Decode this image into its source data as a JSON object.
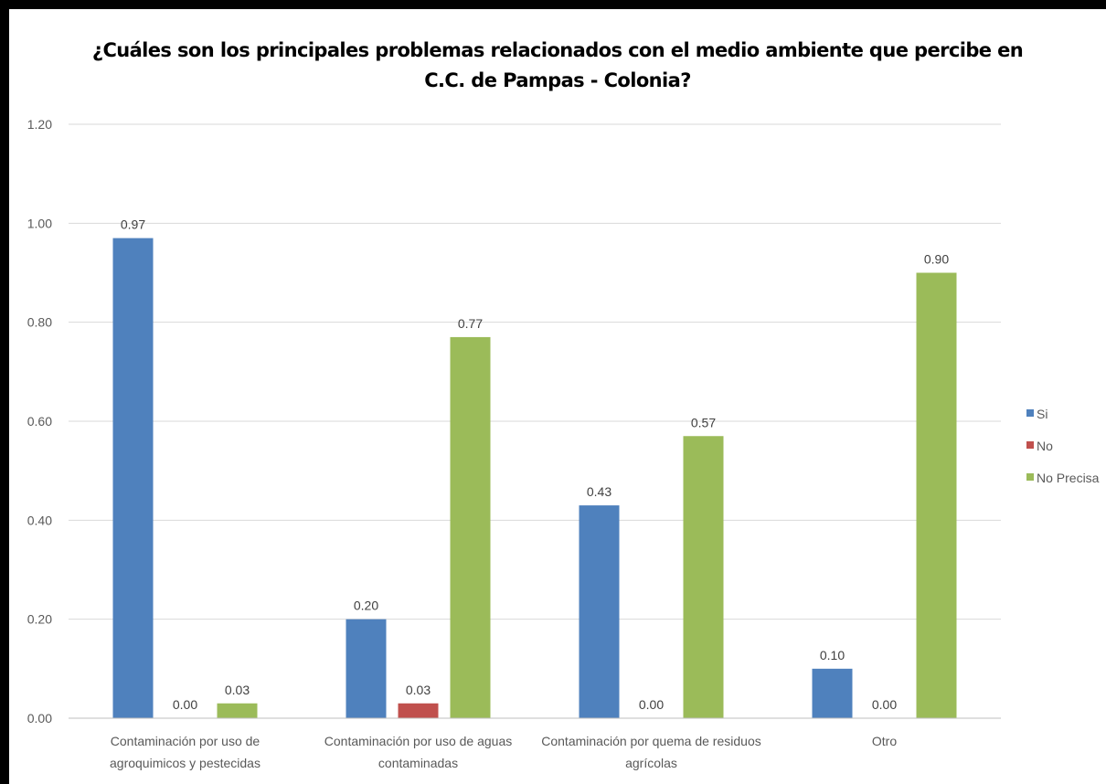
{
  "chart_data": {
    "type": "bar",
    "title_lines": [
      "¿Cuáles  son los principales problemas relacionados con el medio ambiente que percibe en",
      "C.C. de Pampas - Colonia?"
    ],
    "categories": [
      [
        "Contaminación por uso de",
        "agroquimicos y pestecidas"
      ],
      [
        "Contaminación por uso de aguas",
        "contaminadas"
      ],
      [
        "Contaminación por quema de residuos",
        "agrícolas"
      ],
      [
        "Otro"
      ]
    ],
    "series": [
      {
        "name": "Si",
        "color": "#4F81BD",
        "values": [
          0.97,
          0.2,
          0.43,
          0.1
        ],
        "labels": [
          "0.97",
          "0.20",
          "0.43",
          "0.10"
        ]
      },
      {
        "name": "No",
        "color": "#C0504D",
        "values": [
          0.0,
          0.03,
          0.0,
          0.0
        ],
        "labels": [
          "0.00",
          "0.03",
          "0.00",
          "0.00"
        ]
      },
      {
        "name": "No Precisa",
        "color": "#9BBB59",
        "values": [
          0.03,
          0.77,
          0.57,
          0.9
        ],
        "labels": [
          "0.03",
          "0.77",
          "0.57",
          "0.90"
        ]
      }
    ],
    "yticks": [
      "0.00",
      "0.20",
      "0.40",
      "0.60",
      "0.80",
      "1.00",
      "1.20"
    ],
    "ylim": [
      0,
      1.2
    ],
    "grid": true,
    "legend_position": "right"
  }
}
